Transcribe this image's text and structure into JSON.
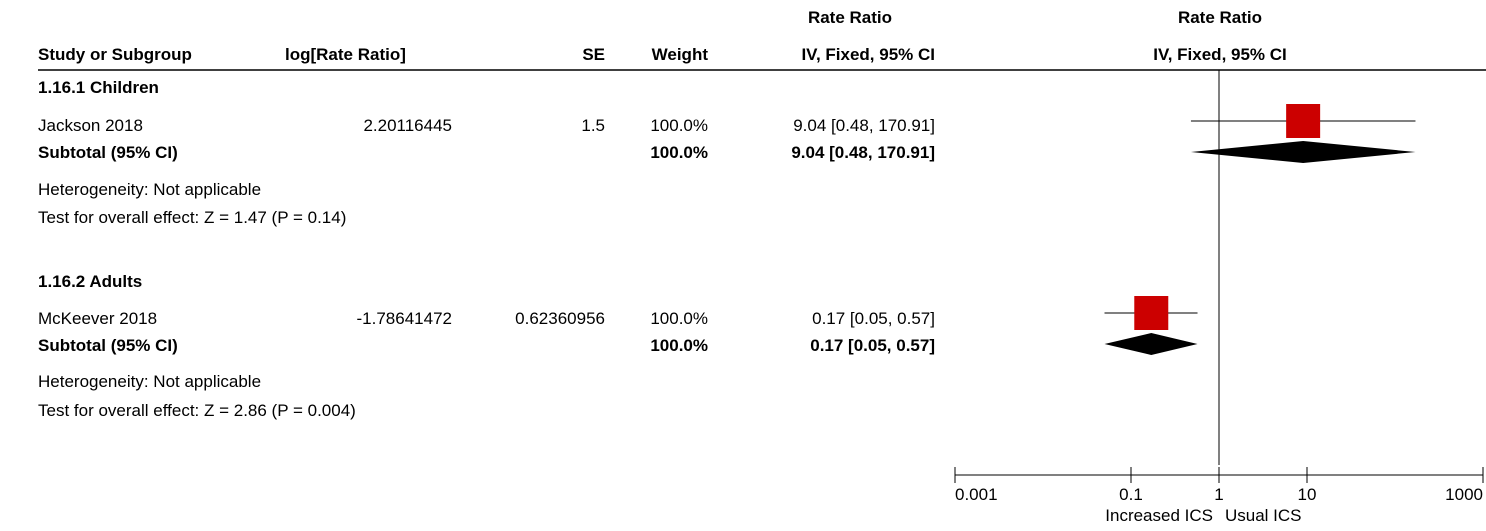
{
  "header": {
    "rate_ratio_left": "Rate Ratio",
    "rate_ratio_right": "Rate Ratio",
    "study_or_subgroup": "Study or Subgroup",
    "log_rate_ratio": "log[Rate Ratio]",
    "se": "SE",
    "weight": "Weight",
    "iv_fixed_left": "IV, Fixed, 95% CI",
    "iv_fixed_right": "IV, Fixed, 95% CI"
  },
  "subgroups": [
    {
      "title": "1.16.1 Children",
      "study": {
        "name": "Jackson 2018",
        "log_rr": "2.20116445",
        "se": "1.5",
        "weight": "100.0%",
        "ci_text": "9.04 [0.48, 170.91]"
      },
      "subtotal": {
        "label": "Subtotal (95% CI)",
        "weight": "100.0%",
        "ci_text": "9.04 [0.48, 170.91]"
      },
      "heterogeneity": "Heterogeneity: Not applicable",
      "overall_effect": "Test for overall effect: Z = 1.47 (P = 0.14)"
    },
    {
      "title": "1.16.2 Adults",
      "study": {
        "name": "McKeever 2018",
        "log_rr": "-1.78641472",
        "se": "0.62360956",
        "weight": "100.0%",
        "ci_text": "0.17 [0.05, 0.57]"
      },
      "subtotal": {
        "label": "Subtotal (95% CI)",
        "weight": "100.0%",
        "ci_text": "0.17 [0.05, 0.57]"
      },
      "heterogeneity": "Heterogeneity: Not applicable",
      "overall_effect": "Test for overall effect: Z = 2.86 (P = 0.004)"
    }
  ],
  "axis": {
    "ticks": [
      "0.001",
      "0.1",
      "1",
      "10",
      "1000"
    ],
    "label_left": "Increased ICS",
    "label_right": "Usual ICS"
  },
  "chart_data": {
    "type": "forest",
    "scale": "log",
    "xlim": [
      0.001,
      1000
    ],
    "tick_values": [
      0.001,
      0.1,
      1,
      10,
      1000
    ],
    "null_line": 1,
    "colors": {
      "study_box": "#cc0000",
      "diamond": "#000000",
      "lines": "#000000"
    },
    "series": [
      {
        "study": "Jackson 2018",
        "estimate": 9.04,
        "lower": 0.48,
        "upper": 170.91,
        "weight": 100.0
      },
      {
        "study": "McKeever 2018",
        "estimate": 0.17,
        "lower": 0.05,
        "upper": 0.57,
        "weight": 100.0
      }
    ],
    "subtotals": [
      {
        "subgroup": "1.16.1 Children",
        "estimate": 9.04,
        "lower": 0.48,
        "upper": 170.91
      },
      {
        "subgroup": "1.16.2 Adults",
        "estimate": 0.17,
        "lower": 0.05,
        "upper": 0.57
      }
    ]
  }
}
